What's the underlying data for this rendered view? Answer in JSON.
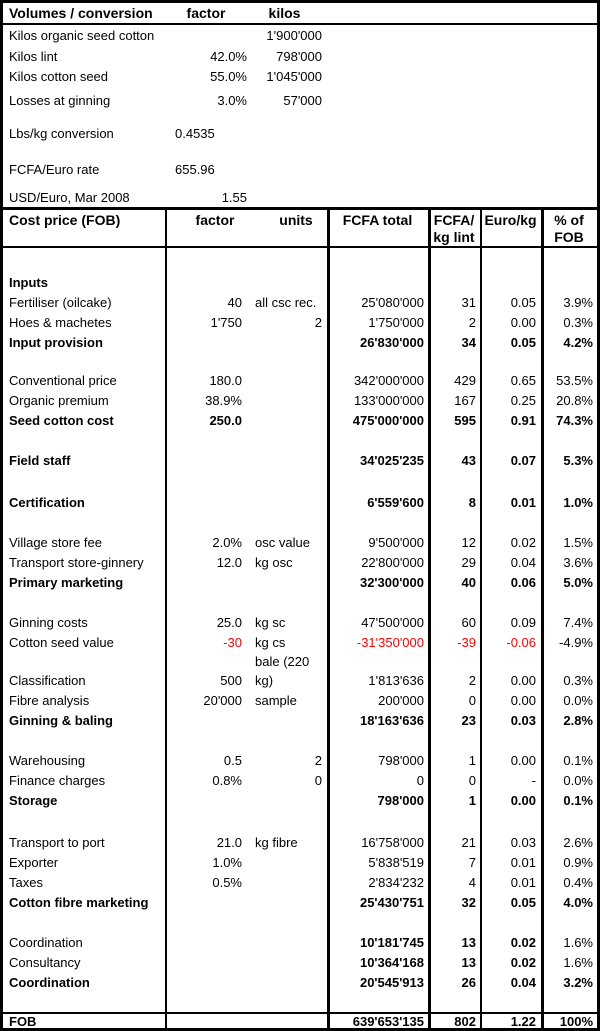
{
  "colors": {
    "negative_value": "#ff0000",
    "text": "#000000",
    "border": "#000000",
    "background": "#ffffff"
  },
  "volumes": {
    "header": {
      "title": "Volumes / conversion",
      "factor": "factor",
      "kilos": "kilos"
    },
    "rows": [
      {
        "label": "Kilos organic seed cotton",
        "factor": "",
        "kilos": "1'900'000"
      },
      {
        "label": "Kilos lint",
        "factor": "42.0%",
        "kilos": "798'000"
      },
      {
        "label": "Kilos cotton seed",
        "factor": "55.0%",
        "kilos": "1'045'000"
      },
      {
        "label": "Losses at ginning",
        "factor": "3.0%",
        "kilos": "57'000"
      },
      {
        "label": "Lbs/kg conversion",
        "factor": "0.4535",
        "kilos": "",
        "factor_left": true
      },
      {
        "label": "FCFA/Euro rate",
        "factor": "655.96",
        "kilos": "",
        "factor_left": true
      },
      {
        "label": "USD/Euro, Mar 2008",
        "factor": "1.55",
        "kilos": ""
      }
    ]
  },
  "cost_table": {
    "header": {
      "title": "Cost price (FOB)",
      "factor": "factor",
      "units": "units",
      "fcfa_total": "FCFA total",
      "fcfa_kg_line1": "FCFA/",
      "fcfa_kg_line2": "kg lint",
      "euro_kg": "Euro/kg",
      "pct_line1": "% of",
      "pct_line2": "FOB"
    },
    "rows": [
      {
        "label": "Inputs",
        "subtotal": true
      },
      {
        "label": "Fertiliser (oilcake)",
        "factor": "40",
        "units": "all csc rec.",
        "fcfa": "25'080'000",
        "kg": "31",
        "euro": "0.05",
        "pct": "3.9%"
      },
      {
        "label": "Hoes & machetes",
        "factor": "1'750",
        "units": "2",
        "units_numeric": true,
        "fcfa": "1'750'000",
        "kg": "2",
        "euro": "0.00",
        "pct": "0.3%"
      },
      {
        "label": "Input provision",
        "subtotal": true,
        "fcfa": "26'830'000",
        "kg": "34",
        "euro": "0.05",
        "pct": "4.2%"
      },
      {
        "label": "Conventional price",
        "factor": "180.0",
        "fcfa": "342'000'000",
        "kg": "429",
        "euro": "0.65",
        "pct": "53.5%"
      },
      {
        "label": "Organic premium",
        "factor": "38.9%",
        "fcfa": "133'000'000",
        "kg": "167",
        "euro": "0.25",
        "pct": "20.8%"
      },
      {
        "label": "Seed cotton cost",
        "subtotal": true,
        "factor": "250.0",
        "fcfa": "475'000'000",
        "kg": "595",
        "euro": "0.91",
        "pct": "74.3%"
      },
      {
        "label": "Field staff",
        "subtotal": true,
        "fcfa": "34'025'235",
        "kg": "43",
        "euro": "0.07",
        "pct": "5.3%"
      },
      {
        "label": "Certification",
        "subtotal": true,
        "fcfa": "6'559'600",
        "kg": "8",
        "euro": "0.01",
        "pct": "1.0%"
      },
      {
        "label": "Village store fee",
        "factor": "2.0%",
        "units": "osc value",
        "fcfa": "9'500'000",
        "kg": "12",
        "euro": "0.02",
        "pct": "1.5%"
      },
      {
        "label": "Transport store-ginnery",
        "factor": "12.0",
        "units": "kg osc",
        "fcfa": "22'800'000",
        "kg": "29",
        "euro": "0.04",
        "pct": "3.6%"
      },
      {
        "label": "Primary marketing",
        "subtotal": true,
        "fcfa": "32'300'000",
        "kg": "40",
        "euro": "0.06",
        "pct": "5.0%"
      },
      {
        "label": "Ginning costs",
        "factor": "25.0",
        "units": "kg sc",
        "fcfa": "47'500'000",
        "kg": "60",
        "euro": "0.09",
        "pct": "7.4%"
      },
      {
        "label": "Cotton seed value",
        "factor": "-30",
        "units": "kg cs",
        "fcfa": "-31'350'000",
        "kg": "-39",
        "euro": "-0.06",
        "pct": "-4.9%",
        "negative": true
      },
      {
        "label": "",
        "units": "bale (220"
      },
      {
        "label": "Classification",
        "factor": "500",
        "units": "kg)",
        "fcfa": "1'813'636",
        "kg": "2",
        "euro": "0.00",
        "pct": "0.3%"
      },
      {
        "label": "Fibre analysis",
        "factor": "20'000",
        "units": "sample",
        "fcfa": "200'000",
        "kg": "0",
        "euro": "0.00",
        "pct": "0.0%"
      },
      {
        "label": "Ginning & baling",
        "subtotal": true,
        "fcfa": "18'163'636",
        "kg": "23",
        "euro": "0.03",
        "pct": "2.8%"
      },
      {
        "label": "Warehousing",
        "factor": "0.5",
        "units": "2",
        "units_numeric": true,
        "fcfa": "798'000",
        "kg": "1",
        "euro": "0.00",
        "pct": "0.1%"
      },
      {
        "label": "Finance charges",
        "factor": "0.8%",
        "units": "0",
        "units_numeric": true,
        "fcfa": "0",
        "kg": "0",
        "euro": "-",
        "pct": "0.0%"
      },
      {
        "label": "Storage",
        "subtotal": true,
        "fcfa": "798'000",
        "kg": "1",
        "euro": "0.00",
        "pct": "0.1%"
      },
      {
        "label": "Transport to port",
        "factor": "21.0",
        "units": "kg fibre",
        "fcfa": "16'758'000",
        "kg": "21",
        "euro": "0.03",
        "pct": "2.6%"
      },
      {
        "label": "Exporter",
        "factor": "1.0%",
        "fcfa": "5'838'519",
        "kg": "7",
        "euro": "0.01",
        "pct": "0.9%"
      },
      {
        "label": "Taxes",
        "factor": "0.5%",
        "fcfa": "2'834'232",
        "kg": "4",
        "euro": "0.01",
        "pct": "0.4%"
      },
      {
        "label": "Cotton fibre marketing",
        "subtotal": true,
        "fcfa": "25'430'751",
        "kg": "32",
        "euro": "0.05",
        "pct": "4.0%"
      },
      {
        "label": "Coordination",
        "values_bold": true,
        "fcfa": "10'181'745",
        "kg": "13",
        "euro": "0.02",
        "pct": "1.6%"
      },
      {
        "label": "Consultancy",
        "values_bold": true,
        "fcfa": "10'364'168",
        "kg": "13",
        "euro": "0.02",
        "pct": "1.6%"
      },
      {
        "label": "Coordination",
        "subtotal": true,
        "fcfa": "20'545'913",
        "kg": "26",
        "euro": "0.04",
        "pct": "3.2%"
      }
    ],
    "footer": {
      "label": "FOB",
      "fcfa": "639'653'135",
      "kg": "802",
      "euro": "1.22",
      "pct": "100%"
    }
  }
}
